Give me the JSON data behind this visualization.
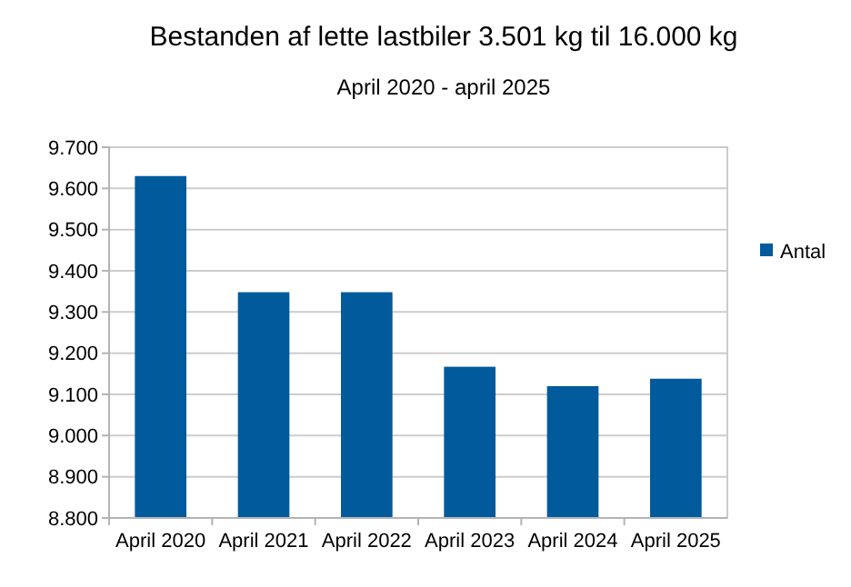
{
  "chart_data": {
    "type": "bar",
    "title": "Bestanden af lette lastbiler 3.501 kg til 16.000 kg",
    "subtitle": "April 2020 - april 2025",
    "categories": [
      "April 2020",
      "April 2021",
      "April 2022",
      "April 2023",
      "April 2024",
      "April 2025"
    ],
    "series": [
      {
        "name": "Antal",
        "color": "#005a9c",
        "values": [
          9630,
          9348,
          9348,
          9167,
          9120,
          9138
        ]
      }
    ],
    "ylim": [
      8800,
      9700
    ],
    "yticks": [
      {
        "value": 8800,
        "label": "8.800"
      },
      {
        "value": 8900,
        "label": "8.900"
      },
      {
        "value": 9000,
        "label": "9.000"
      },
      {
        "value": 9100,
        "label": "9.100"
      },
      {
        "value": 9200,
        "label": "9.200"
      },
      {
        "value": 9300,
        "label": "9.300"
      },
      {
        "value": 9400,
        "label": "9.400"
      },
      {
        "value": 9500,
        "label": "9.500"
      },
      {
        "value": 9600,
        "label": "9.600"
      },
      {
        "value": 9700,
        "label": "9.700"
      }
    ],
    "grid": "y",
    "legend": "right"
  }
}
